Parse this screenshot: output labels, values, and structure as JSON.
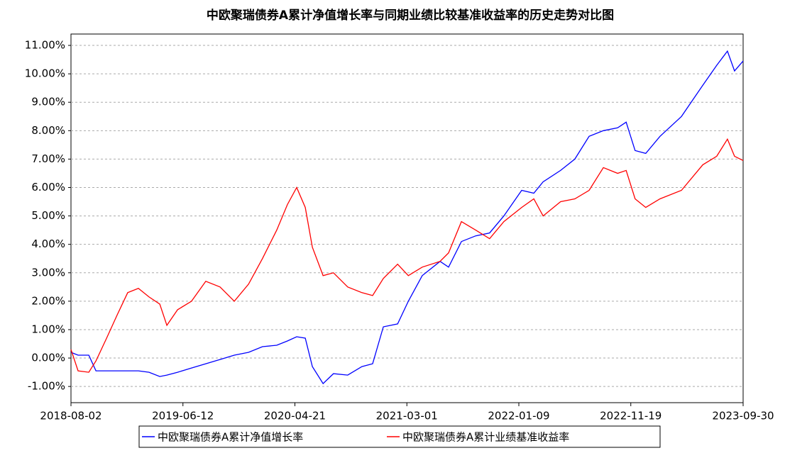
{
  "chart_data": {
    "type": "line",
    "title": "中欧聚瑞债券A累计净值增长率与同期业绩比较基准收益率的历史走势对比图",
    "x": [
      "2018-08-02",
      "2018-08-22",
      "2018-09-21",
      "2018-10-11",
      "2018-11-10",
      "2018-12-09",
      "2019-01-08",
      "2019-02-07",
      "2019-03-09",
      "2019-04-08",
      "2019-04-28",
      "2019-05-28",
      "2019-07-06",
      "2019-08-15",
      "2019-09-24",
      "2019-11-03",
      "2019-12-13",
      "2020-01-21",
      "2020-03-01",
      "2020-03-31",
      "2020-04-26",
      "2020-05-20",
      "2020-06-09",
      "2020-07-09",
      "2020-08-07",
      "2020-09-16",
      "2020-10-26",
      "2020-11-25",
      "2020-12-25",
      "2021-02-03",
      "2021-03-05",
      "2021-04-13",
      "2021-06-02",
      "2021-06-26",
      "2021-08-01",
      "2021-09-10",
      "2021-10-19",
      "2021-11-28",
      "2022-01-17",
      "2022-02-20",
      "2022-03-18",
      "2022-05-06",
      "2022-06-15",
      "2022-07-25",
      "2022-09-03",
      "2022-10-13",
      "2022-11-06",
      "2022-12-01",
      "2022-12-31",
      "2023-02-09",
      "2023-04-10",
      "2023-06-09",
      "2023-07-18",
      "2023-08-17",
      "2023-09-06",
      "2023-09-30"
    ],
    "series": [
      {
        "name": "中欧聚瑞债券A累计净值增长率",
        "color": "#0000ff",
        "values": [
          0.2,
          0.1,
          0.1,
          -0.45,
          -0.45,
          -0.45,
          -0.45,
          -0.45,
          -0.5,
          -0.65,
          -0.6,
          -0.5,
          -0.35,
          -0.2,
          -0.05,
          0.1,
          0.2,
          0.4,
          0.45,
          0.6,
          0.75,
          0.7,
          -0.3,
          -0.9,
          -0.55,
          -0.6,
          -0.3,
          -0.2,
          1.1,
          1.2,
          2.0,
          2.9,
          3.4,
          3.2,
          4.1,
          4.3,
          4.4,
          5.0,
          5.9,
          5.8,
          6.2,
          6.6,
          7.0,
          7.8,
          8.0,
          8.1,
          8.3,
          7.3,
          7.2,
          7.8,
          8.5,
          9.6,
          10.3,
          10.8,
          10.1,
          10.45
        ]
      },
      {
        "name": "中欧聚瑞债券A累计业绩基准收益率",
        "color": "#ff0000",
        "values": [
          0.3,
          -0.45,
          -0.5,
          -0.1,
          0.7,
          1.5,
          2.3,
          2.45,
          2.15,
          1.9,
          1.15,
          1.7,
          2.0,
          2.7,
          2.5,
          2.0,
          2.6,
          3.5,
          4.5,
          5.4,
          6.0,
          5.3,
          3.9,
          2.9,
          3.0,
          2.5,
          2.3,
          2.2,
          2.8,
          3.3,
          2.9,
          3.2,
          3.4,
          3.7,
          4.8,
          4.5,
          4.2,
          4.8,
          5.3,
          5.6,
          5.0,
          5.5,
          5.6,
          5.9,
          6.7,
          6.5,
          6.6,
          5.6,
          5.3,
          5.6,
          5.9,
          6.8,
          7.1,
          7.7,
          7.1,
          6.95
        ]
      }
    ],
    "xlim": [
      "2018-08-02",
      "2023-09-30"
    ],
    "xticks": [
      "2018-08-02",
      "2019-06-12",
      "2020-04-21",
      "2021-03-01",
      "2022-01-09",
      "2022-11-19",
      "2023-09-30"
    ],
    "ylim": [
      -1.57,
      11.4
    ],
    "yticks": [
      {
        "value": -1,
        "label": "-1.00%"
      },
      {
        "value": 0,
        "label": "0.00%"
      },
      {
        "value": 1,
        "label": "1.00%"
      },
      {
        "value": 2,
        "label": "2.00%"
      },
      {
        "value": 3,
        "label": "3.00%"
      },
      {
        "value": 4,
        "label": "4.00%"
      },
      {
        "value": 5,
        "label": "5.00%"
      },
      {
        "value": 6,
        "label": "6.00%"
      },
      {
        "value": 7,
        "label": "7.00%"
      },
      {
        "value": 8,
        "label": "8.00%"
      },
      {
        "value": 9,
        "label": "9.00%"
      },
      {
        "value": 10,
        "label": "10.00%"
      },
      {
        "value": 11,
        "label": "11.00%"
      }
    ],
    "grid": true
  }
}
